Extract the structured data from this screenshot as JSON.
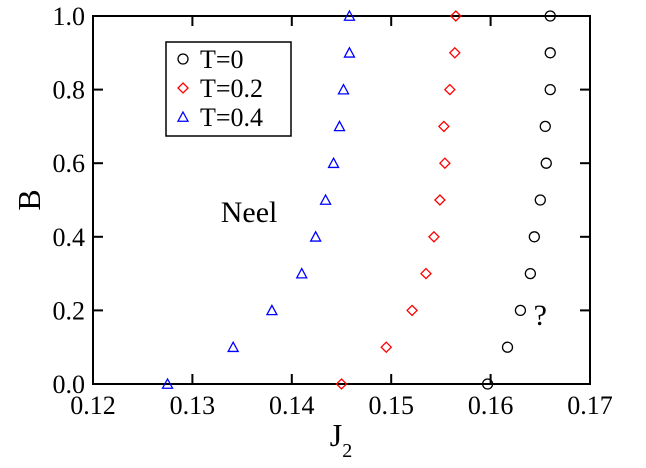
{
  "chart_data": {
    "type": "scatter",
    "xlabel": "J",
    "xlabel_sub": "2",
    "ylabel": "B",
    "xlim": [
      0.12,
      0.17
    ],
    "ylim": [
      0.0,
      1.0
    ],
    "xticks": [
      0.12,
      0.13,
      0.14,
      0.15,
      0.16,
      0.17
    ],
    "yticks": [
      0.0,
      0.2,
      0.4,
      0.6,
      0.8,
      1.0
    ],
    "xtick_labels": [
      "0.12",
      "0.13",
      "0.14",
      "0.15",
      "0.16",
      "0.17"
    ],
    "ytick_labels": [
      "0.0",
      "0.2",
      "0.4",
      "0.6",
      "0.8",
      "1.0"
    ],
    "grid": false,
    "legend_position": "top-left",
    "series": [
      {
        "name": "T=0",
        "marker": "circle",
        "color": "#000000",
        "x": [
          0.1597,
          0.1617,
          0.163,
          0.164,
          0.1644,
          0.165,
          0.1656,
          0.1655,
          0.166,
          0.166,
          0.166
        ],
        "y": [
          0.0,
          0.1,
          0.2,
          0.3,
          0.4,
          0.5,
          0.6,
          0.7,
          0.8,
          0.9,
          1.0
        ]
      },
      {
        "name": "T=0.2",
        "marker": "diamond",
        "color": "#ff0000",
        "x": [
          0.145,
          0.1495,
          0.1521,
          0.1535,
          0.1543,
          0.1549,
          0.1554,
          0.1553,
          0.1559,
          0.1564,
          0.1565
        ],
        "y": [
          0.0,
          0.1,
          0.2,
          0.3,
          0.4,
          0.5,
          0.6,
          0.7,
          0.8,
          0.9,
          1.0
        ]
      },
      {
        "name": "T=0.4",
        "marker": "triangle",
        "color": "#0000ff",
        "x": [
          0.1275,
          0.1341,
          0.138,
          0.141,
          0.1424,
          0.1434,
          0.1442,
          0.1448,
          0.1452,
          0.1458,
          0.1458
        ],
        "y": [
          0.0,
          0.1,
          0.2,
          0.3,
          0.4,
          0.5,
          0.6,
          0.7,
          0.8,
          0.9,
          1.0
        ]
      }
    ],
    "annotations": [
      {
        "text": "Neel",
        "x": 0.1357,
        "y": 0.44
      },
      {
        "text": "?",
        "x": 0.165,
        "y": 0.16
      }
    ]
  }
}
